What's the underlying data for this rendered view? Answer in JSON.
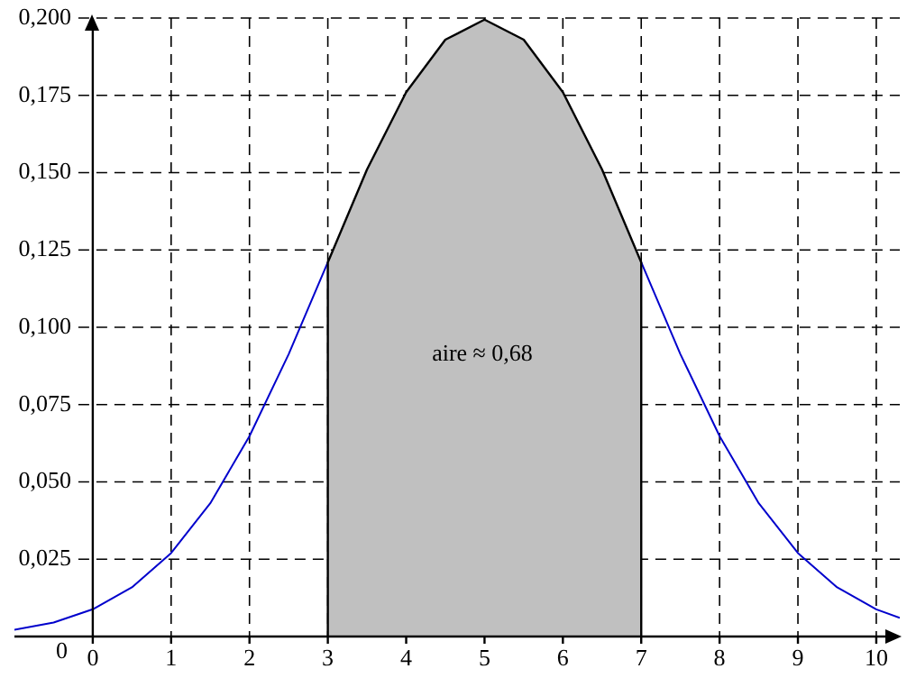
{
  "chart_data": {
    "type": "line",
    "series": [
      {
        "type": "line",
        "color": "#0000cc",
        "x": [
          -1,
          -0.5,
          0,
          0.5,
          1,
          1.5,
          2,
          2.5,
          3
        ],
        "values": [
          0.0022,
          0.0045,
          0.0088,
          0.0159,
          0.027,
          0.0431,
          0.0648,
          0.0913,
          0.121
        ]
      },
      {
        "type": "line",
        "color": "#0000cc",
        "x": [
          7,
          7.5,
          8,
          8.5,
          9,
          9.5,
          10,
          10.3
        ],
        "values": [
          0.121,
          0.0913,
          0.0648,
          0.0431,
          0.027,
          0.0159,
          0.0088,
          0.006
        ]
      },
      {
        "type": "area",
        "color": "#c0c0c0",
        "x": [
          3,
          3,
          3.5,
          4,
          4.5,
          5,
          5.5,
          6,
          6.5,
          7,
          7
        ],
        "values": [
          0,
          0.121,
          0.151,
          0.176,
          0.193,
          0.1995,
          0.193,
          0.176,
          0.151,
          0.121,
          0
        ]
      }
    ],
    "xlim": [
      -1,
      10.3
    ],
    "xticks": [
      0,
      1,
      2,
      3,
      4,
      5,
      6,
      7,
      8,
      9,
      10
    ],
    "ylim": [
      0,
      0.2
    ],
    "yticks": [
      {
        "value": 0,
        "label": "0"
      },
      {
        "value": 0.025,
        "label": "0,025"
      },
      {
        "value": 0.05,
        "label": "0,050"
      },
      {
        "value": 0.075,
        "label": "0,075"
      },
      {
        "value": 0.1,
        "label": "0,100"
      },
      {
        "value": 0.125,
        "label": "0,125"
      },
      {
        "value": 0.15,
        "label": "0,150"
      },
      {
        "value": 0.175,
        "label": "0,175"
      },
      {
        "value": 0.2,
        "label": "0,200"
      }
    ],
    "grid": true,
    "annotations": [
      "aire ≈ 0,68"
    ]
  }
}
